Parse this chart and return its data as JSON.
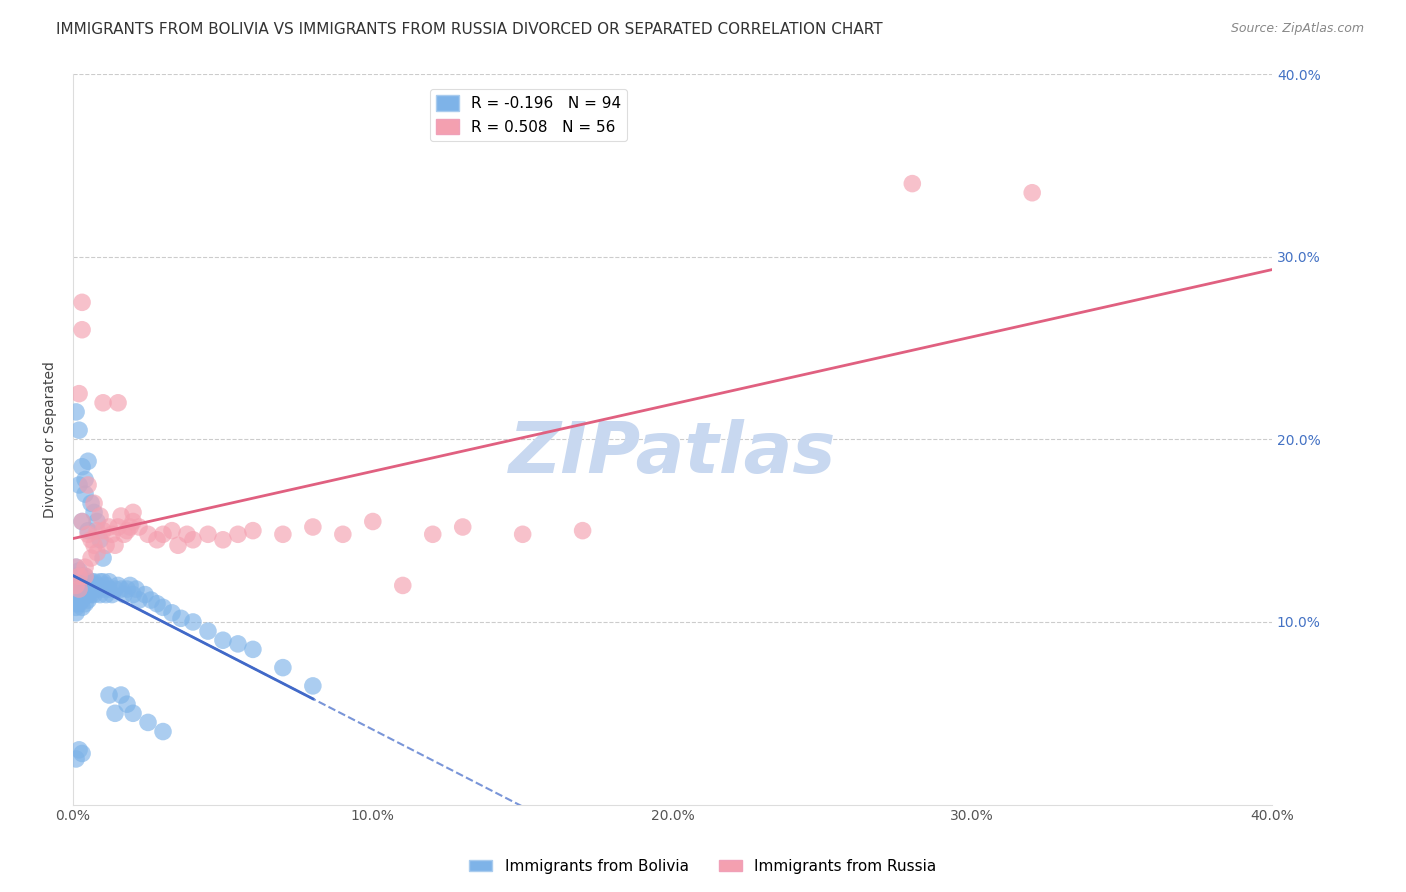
{
  "title": "IMMIGRANTS FROM BOLIVIA VS IMMIGRANTS FROM RUSSIA DIVORCED OR SEPARATED CORRELATION CHART",
  "source": "Source: ZipAtlas.com",
  "ylabel": "Divorced or Separated",
  "watermark": "ZIPatlas",
  "xlim": [
    0.0,
    0.4
  ],
  "ylim": [
    0.0,
    0.4
  ],
  "bolivia_color": "#7eb3e8",
  "russia_color": "#f4a0b0",
  "bolivia_R": -0.196,
  "bolivia_N": 94,
  "russia_R": 0.508,
  "russia_N": 56,
  "bolivia_line_color": "#4169c8",
  "russia_line_color": "#e06080",
  "grid_color": "#cccccc",
  "title_fontsize": 11,
  "tick_fontsize": 10,
  "legend_fontsize": 11,
  "watermark_fontsize": 52,
  "watermark_color": "#c8d8f0",
  "background_color": "#ffffff",
  "right_tick_color": "#4472c4",
  "bolivia_x": [
    0.001,
    0.001,
    0.001,
    0.001,
    0.001,
    0.001,
    0.001,
    0.001,
    0.002,
    0.002,
    0.002,
    0.002,
    0.002,
    0.002,
    0.002,
    0.003,
    0.003,
    0.003,
    0.003,
    0.003,
    0.003,
    0.004,
    0.004,
    0.004,
    0.004,
    0.004,
    0.005,
    0.005,
    0.005,
    0.005,
    0.006,
    0.006,
    0.006,
    0.006,
    0.007,
    0.007,
    0.007,
    0.008,
    0.008,
    0.009,
    0.009,
    0.01,
    0.01,
    0.011,
    0.011,
    0.012,
    0.012,
    0.013,
    0.014,
    0.015,
    0.016,
    0.017,
    0.018,
    0.019,
    0.02,
    0.021,
    0.022,
    0.024,
    0.026,
    0.028,
    0.03,
    0.033,
    0.036,
    0.04,
    0.045,
    0.05,
    0.055,
    0.06,
    0.07,
    0.08,
    0.001,
    0.002,
    0.003,
    0.004,
    0.005,
    0.006,
    0.007,
    0.008,
    0.009,
    0.01,
    0.012,
    0.014,
    0.016,
    0.018,
    0.02,
    0.025,
    0.03,
    0.002,
    0.003,
    0.004,
    0.005,
    0.001,
    0.002,
    0.003
  ],
  "bolivia_y": [
    0.115,
    0.12,
    0.125,
    0.11,
    0.13,
    0.105,
    0.118,
    0.108,
    0.12,
    0.115,
    0.125,
    0.11,
    0.118,
    0.122,
    0.128,
    0.115,
    0.12,
    0.112,
    0.125,
    0.118,
    0.108,
    0.115,
    0.12,
    0.118,
    0.125,
    0.11,
    0.118,
    0.122,
    0.115,
    0.112,
    0.118,
    0.122,
    0.115,
    0.12,
    0.118,
    0.122,
    0.115,
    0.12,
    0.118,
    0.115,
    0.122,
    0.118,
    0.122,
    0.12,
    0.115,
    0.118,
    0.122,
    0.115,
    0.118,
    0.12,
    0.118,
    0.115,
    0.118,
    0.12,
    0.115,
    0.118,
    0.112,
    0.115,
    0.112,
    0.11,
    0.108,
    0.105,
    0.102,
    0.1,
    0.095,
    0.09,
    0.088,
    0.085,
    0.075,
    0.065,
    0.215,
    0.175,
    0.155,
    0.17,
    0.15,
    0.165,
    0.16,
    0.155,
    0.145,
    0.135,
    0.06,
    0.05,
    0.06,
    0.055,
    0.05,
    0.045,
    0.04,
    0.205,
    0.185,
    0.178,
    0.188,
    0.025,
    0.03,
    0.028
  ],
  "russia_x": [
    0.001,
    0.001,
    0.002,
    0.002,
    0.003,
    0.003,
    0.004,
    0.004,
    0.005,
    0.005,
    0.006,
    0.006,
    0.007,
    0.007,
    0.008,
    0.008,
    0.009,
    0.01,
    0.01,
    0.011,
    0.012,
    0.013,
    0.014,
    0.015,
    0.016,
    0.017,
    0.018,
    0.019,
    0.02,
    0.022,
    0.025,
    0.028,
    0.03,
    0.033,
    0.035,
    0.038,
    0.04,
    0.045,
    0.05,
    0.055,
    0.06,
    0.07,
    0.08,
    0.09,
    0.1,
    0.11,
    0.12,
    0.13,
    0.15,
    0.17,
    0.002,
    0.003,
    0.015,
    0.02,
    0.28,
    0.32
  ],
  "russia_y": [
    0.12,
    0.13,
    0.125,
    0.118,
    0.26,
    0.155,
    0.13,
    0.125,
    0.175,
    0.148,
    0.145,
    0.135,
    0.165,
    0.142,
    0.15,
    0.138,
    0.158,
    0.15,
    0.22,
    0.142,
    0.152,
    0.148,
    0.142,
    0.152,
    0.158,
    0.148,
    0.15,
    0.152,
    0.16,
    0.152,
    0.148,
    0.145,
    0.148,
    0.15,
    0.142,
    0.148,
    0.145,
    0.148,
    0.145,
    0.148,
    0.15,
    0.148,
    0.152,
    0.148,
    0.155,
    0.12,
    0.148,
    0.152,
    0.148,
    0.15,
    0.225,
    0.275,
    0.22,
    0.155,
    0.34,
    0.335
  ]
}
